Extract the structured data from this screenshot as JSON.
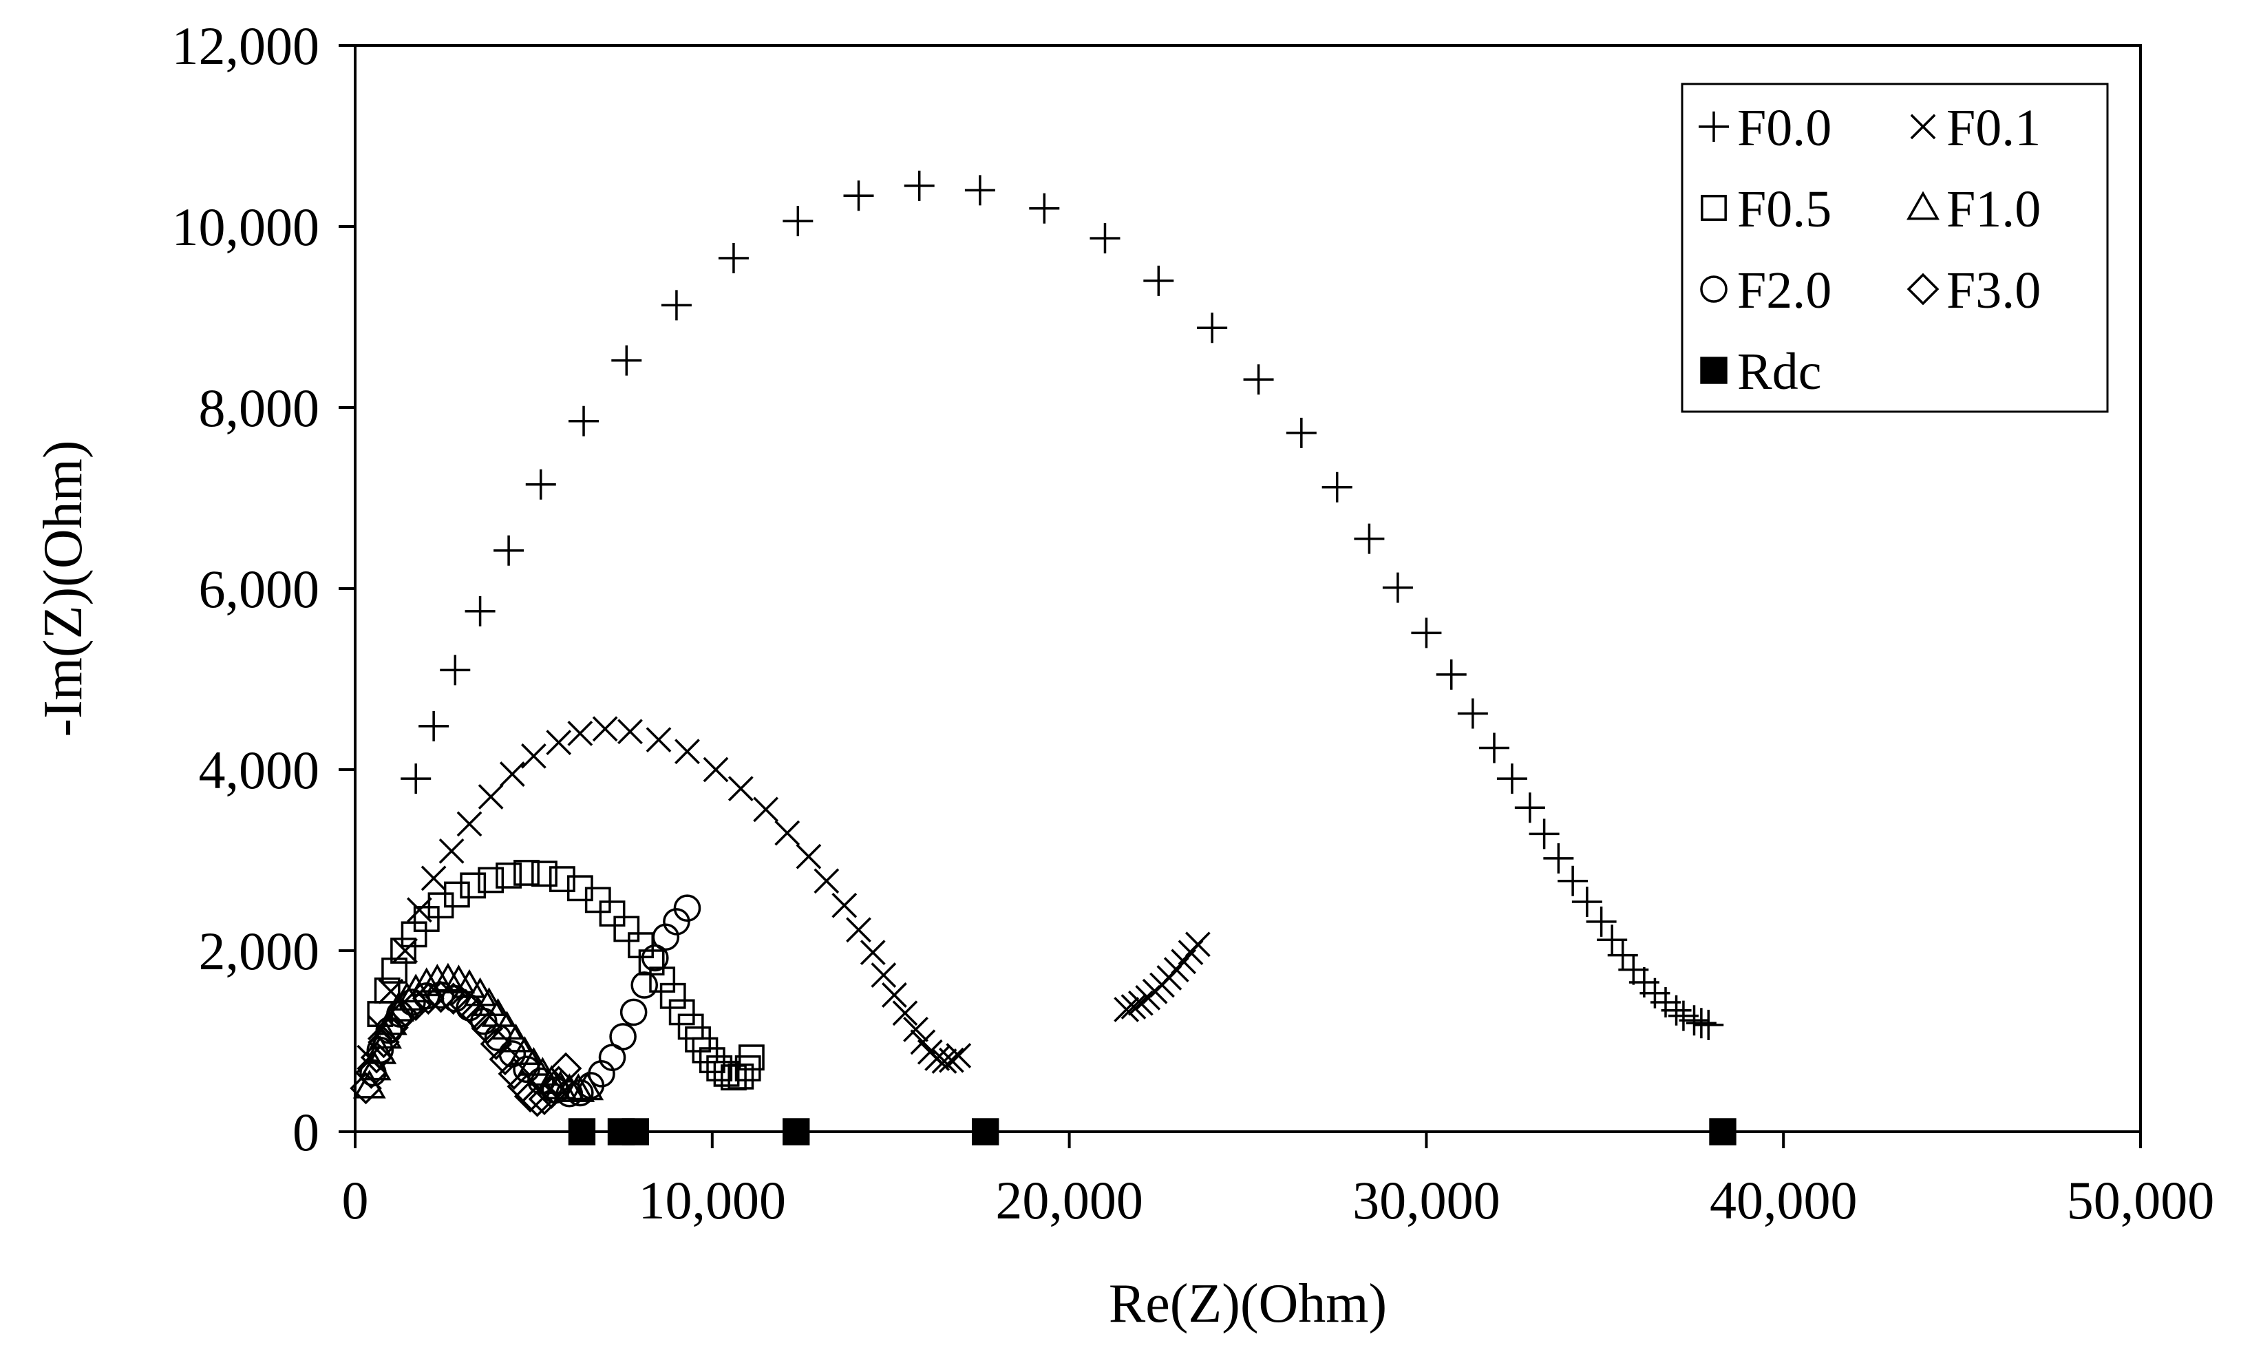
{
  "chart_data": {
    "type": "scatter",
    "title": "",
    "xlabel": "Re(Z)(Ohm)",
    "ylabel": "-Im(Z)(Ohm)",
    "xlim": [
      0,
      50000
    ],
    "ylim": [
      0,
      12000
    ],
    "x_ticks": [
      0,
      10000,
      20000,
      30000,
      40000,
      50000
    ],
    "y_ticks": [
      0,
      2000,
      4000,
      6000,
      8000,
      10000,
      12000
    ],
    "x_tick_labels": [
      "0",
      "10,000",
      "20,000",
      "30,000",
      "40,000",
      "50,000"
    ],
    "y_tick_labels": [
      "0",
      "2,000",
      "4,000",
      "6,000",
      "8,000",
      "10,000",
      "12,000"
    ],
    "grid": false,
    "legend_position": "top-right",
    "series": [
      {
        "name": "F0.0",
        "marker": "plus",
        "points": [
          [
            1700,
            3900
          ],
          [
            2200,
            4480
          ],
          [
            2800,
            5100
          ],
          [
            3500,
            5750
          ],
          [
            4300,
            6420
          ],
          [
            5200,
            7150
          ],
          [
            6400,
            7850
          ],
          [
            7600,
            8520
          ],
          [
            9000,
            9130
          ],
          [
            10600,
            9650
          ],
          [
            12400,
            10060
          ],
          [
            14100,
            10340
          ],
          [
            15800,
            10450
          ],
          [
            17500,
            10400
          ],
          [
            19300,
            10200
          ],
          [
            21000,
            9870
          ],
          [
            22500,
            9400
          ],
          [
            24000,
            8880
          ],
          [
            25300,
            8310
          ],
          [
            26500,
            7720
          ],
          [
            27500,
            7120
          ],
          [
            28400,
            6550
          ],
          [
            29200,
            6010
          ],
          [
            30000,
            5510
          ],
          [
            30700,
            5050
          ],
          [
            31300,
            4620
          ],
          [
            31900,
            4240
          ],
          [
            32400,
            3900
          ],
          [
            32900,
            3580
          ],
          [
            33300,
            3290
          ],
          [
            33700,
            3020
          ],
          [
            34100,
            2770
          ],
          [
            34500,
            2540
          ],
          [
            34900,
            2320
          ],
          [
            35200,
            2120
          ],
          [
            35500,
            1950
          ],
          [
            35800,
            1790
          ],
          [
            36100,
            1650
          ],
          [
            36400,
            1530
          ],
          [
            36700,
            1430
          ],
          [
            37000,
            1340
          ],
          [
            37200,
            1280
          ],
          [
            37500,
            1230
          ],
          [
            37700,
            1200
          ],
          [
            37900,
            1180
          ]
        ]
      },
      {
        "name": "F0.1",
        "marker": "cross",
        "points": [
          [
            400,
            820
          ],
          [
            700,
            1150
          ],
          [
            1000,
            1550
          ],
          [
            1400,
            2000
          ],
          [
            1800,
            2450
          ],
          [
            2200,
            2800
          ],
          [
            2700,
            3100
          ],
          [
            3200,
            3400
          ],
          [
            3800,
            3700
          ],
          [
            4400,
            3950
          ],
          [
            5000,
            4150
          ],
          [
            5700,
            4300
          ],
          [
            6300,
            4400
          ],
          [
            7000,
            4450
          ],
          [
            7700,
            4420
          ],
          [
            8500,
            4330
          ],
          [
            9300,
            4200
          ],
          [
            10100,
            4000
          ],
          [
            10800,
            3790
          ],
          [
            11500,
            3560
          ],
          [
            12100,
            3300
          ],
          [
            12700,
            3040
          ],
          [
            13200,
            2770
          ],
          [
            13700,
            2500
          ],
          [
            14100,
            2230
          ],
          [
            14500,
            1980
          ],
          [
            14800,
            1730
          ],
          [
            15100,
            1510
          ],
          [
            15400,
            1310
          ],
          [
            15700,
            1130
          ],
          [
            15900,
            990
          ],
          [
            16100,
            880
          ],
          [
            16300,
            810
          ],
          [
            16500,
            780
          ],
          [
            16700,
            790
          ],
          [
            16900,
            840
          ],
          [
            21600,
            1350
          ],
          [
            21800,
            1380
          ],
          [
            22000,
            1420
          ],
          [
            22200,
            1480
          ],
          [
            22400,
            1550
          ],
          [
            22600,
            1620
          ],
          [
            22800,
            1700
          ],
          [
            23000,
            1790
          ],
          [
            23200,
            1880
          ],
          [
            23400,
            1980
          ],
          [
            23600,
            2070
          ]
        ]
      },
      {
        "name": "F0.5",
        "marker": "square",
        "points": [
          [
            700,
            1300
          ],
          [
            900,
            1560
          ],
          [
            1100,
            1780
          ],
          [
            1350,
            2000
          ],
          [
            1650,
            2180
          ],
          [
            2000,
            2350
          ],
          [
            2400,
            2500
          ],
          [
            2850,
            2620
          ],
          [
            3300,
            2720
          ],
          [
            3800,
            2780
          ],
          [
            4300,
            2830
          ],
          [
            4800,
            2860
          ],
          [
            5300,
            2850
          ],
          [
            5800,
            2790
          ],
          [
            6300,
            2690
          ],
          [
            6800,
            2560
          ],
          [
            7200,
            2410
          ],
          [
            7600,
            2240
          ],
          [
            8000,
            2060
          ],
          [
            8300,
            1870
          ],
          [
            8600,
            1680
          ],
          [
            8900,
            1500
          ],
          [
            9150,
            1320
          ],
          [
            9400,
            1160
          ],
          [
            9600,
            1020
          ],
          [
            9800,
            900
          ],
          [
            10000,
            790
          ],
          [
            10200,
            700
          ],
          [
            10400,
            640
          ],
          [
            10600,
            600
          ],
          [
            10800,
            610
          ],
          [
            11000,
            700
          ],
          [
            11100,
            820
          ]
        ]
      },
      {
        "name": "F1.0",
        "marker": "triangle",
        "points": [
          [
            400,
            500
          ],
          [
            550,
            700
          ],
          [
            700,
            880
          ],
          [
            850,
            1050
          ],
          [
            1000,
            1200
          ],
          [
            1200,
            1350
          ],
          [
            1450,
            1470
          ],
          [
            1700,
            1560
          ],
          [
            2000,
            1630
          ],
          [
            2300,
            1670
          ],
          [
            2600,
            1680
          ],
          [
            2900,
            1660
          ],
          [
            3200,
            1610
          ],
          [
            3500,
            1520
          ],
          [
            3750,
            1410
          ],
          [
            4000,
            1290
          ],
          [
            4250,
            1150
          ],
          [
            4500,
            1010
          ],
          [
            4750,
            870
          ],
          [
            5000,
            750
          ],
          [
            5250,
            640
          ],
          [
            5500,
            550
          ],
          [
            5750,
            490
          ],
          [
            6000,
            460
          ],
          [
            6250,
            460
          ],
          [
            6500,
            480
          ]
        ]
      },
      {
        "name": "F2.0",
        "marker": "circle",
        "points": [
          [
            500,
            650
          ],
          [
            700,
            900
          ],
          [
            950,
            1120
          ],
          [
            1250,
            1300
          ],
          [
            1600,
            1430
          ],
          [
            2000,
            1500
          ],
          [
            2400,
            1510
          ],
          [
            2800,
            1470
          ],
          [
            3200,
            1370
          ],
          [
            3600,
            1220
          ],
          [
            4000,
            1040
          ],
          [
            4400,
            860
          ],
          [
            4800,
            690
          ],
          [
            5200,
            560
          ],
          [
            5600,
            460
          ],
          [
            6000,
            420
          ],
          [
            6300,
            430
          ],
          [
            6600,
            510
          ],
          [
            6900,
            640
          ],
          [
            7200,
            820
          ],
          [
            7500,
            1050
          ],
          [
            7800,
            1320
          ],
          [
            8100,
            1620
          ],
          [
            8400,
            1920
          ],
          [
            8700,
            2150
          ],
          [
            9000,
            2320
          ],
          [
            9300,
            2470
          ]
        ]
      },
      {
        "name": "F3.0",
        "marker": "diamond",
        "points": [
          [
            300,
            480
          ],
          [
            450,
            650
          ],
          [
            600,
            820
          ],
          [
            800,
            990
          ],
          [
            1050,
            1150
          ],
          [
            1350,
            1290
          ],
          [
            1700,
            1400
          ],
          [
            2050,
            1470
          ],
          [
            2400,
            1490
          ],
          [
            2750,
            1470
          ],
          [
            3100,
            1400
          ],
          [
            3400,
            1290
          ],
          [
            3700,
            1140
          ],
          [
            3950,
            970
          ],
          [
            4200,
            800
          ],
          [
            4450,
            640
          ],
          [
            4700,
            500
          ],
          [
            4900,
            390
          ],
          [
            5100,
            340
          ],
          [
            5300,
            360
          ],
          [
            5500,
            430
          ],
          [
            5700,
            550
          ],
          [
            5900,
            700
          ]
        ]
      },
      {
        "name": "Rdc",
        "marker": "filled-square",
        "points": [
          [
            6350,
            0
          ],
          [
            7450,
            0
          ],
          [
            7850,
            0
          ],
          [
            12350,
            0
          ],
          [
            17650,
            0
          ],
          [
            38300,
            0
          ]
        ]
      }
    ]
  }
}
